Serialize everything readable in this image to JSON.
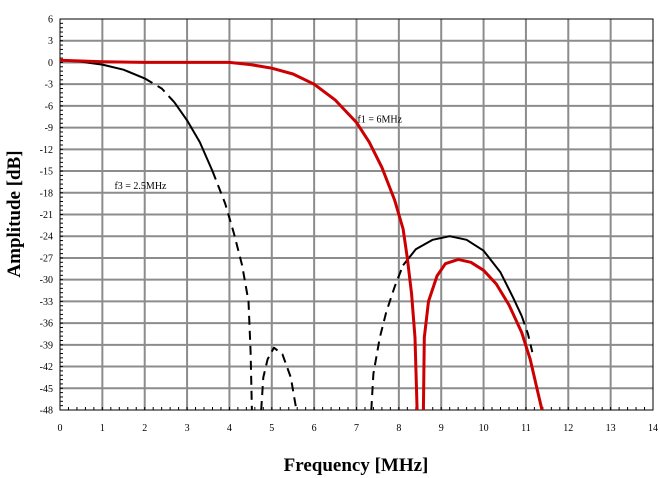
{
  "chart_data": {
    "type": "line",
    "xlabel": "Frequency [MHz]",
    "ylabel": "Amplitude [dB]",
    "xlim": [
      0,
      14
    ],
    "ylim": [
      -48,
      6
    ],
    "x_ticks": [
      0,
      1,
      2,
      3,
      4,
      5,
      6,
      7,
      8,
      9,
      10,
      11,
      12,
      13,
      14
    ],
    "y_ticks": [
      6,
      3,
      0,
      -3,
      -6,
      -9,
      -12,
      -15,
      -18,
      -21,
      -24,
      -27,
      -30,
      -33,
      -36,
      -39,
      -42,
      -45,
      -48
    ],
    "grid": true,
    "annotations": [
      {
        "text": "f1 = 6MHz",
        "x": 7.55,
        "y": -8.3
      },
      {
        "text": "f3 = 2.5MHz",
        "x": 1.9,
        "y": -17.5
      }
    ],
    "series": [
      {
        "color": "#cc0000",
        "style": "solid",
        "segments": [
          [
            [
              0,
              0.3
            ],
            [
              0.5,
              0.2
            ],
            [
              1,
              0.1
            ],
            [
              2,
              0
            ],
            [
              3,
              0
            ],
            [
              4,
              0
            ],
            [
              4.5,
              -0.3
            ],
            [
              5,
              -0.8
            ],
            [
              5.5,
              -1.6
            ],
            [
              6,
              -3
            ],
            [
              6.5,
              -5.2
            ],
            [
              7,
              -8.3
            ],
            [
              7.3,
              -11
            ],
            [
              7.6,
              -14.5
            ],
            [
              7.9,
              -19
            ],
            [
              8.1,
              -23
            ],
            [
              8.2,
              -27
            ],
            [
              8.3,
              -32
            ],
            [
              8.38,
              -38
            ],
            [
              8.43,
              -48
            ]
          ],
          [
            [
              8.58,
              -48
            ],
            [
              8.6,
              -38
            ],
            [
              8.7,
              -33
            ],
            [
              8.9,
              -29.5
            ],
            [
              9.1,
              -27.8
            ],
            [
              9.4,
              -27.2
            ],
            [
              9.7,
              -27.6
            ],
            [
              10,
              -28.7
            ],
            [
              10.3,
              -30.6
            ],
            [
              10.6,
              -33.5
            ],
            [
              10.9,
              -37.3
            ],
            [
              11.1,
              -41
            ],
            [
              11.2,
              -43.5
            ],
            [
              11.3,
              -46
            ],
            [
              11.38,
              -48
            ]
          ]
        ]
      },
      {
        "color": "#000000",
        "style": "mixed",
        "segments": [
          {
            "dash": false,
            "points": [
              [
                0,
                0.3
              ],
              [
                0.5,
                0.1
              ],
              [
                1,
                -0.3
              ],
              [
                1.5,
                -1
              ],
              [
                2,
                -2.2
              ]
            ]
          },
          {
            "dash": true,
            "points": [
              [
                2,
                -2.2
              ],
              [
                2.4,
                -3.6
              ],
              [
                2.7,
                -5.5
              ]
            ]
          },
          {
            "dash": false,
            "points": [
              [
                2.7,
                -5.5
              ],
              [
                3,
                -8
              ],
              [
                3.3,
                -11
              ],
              [
                3.6,
                -15
              ]
            ]
          },
          {
            "dash": true,
            "points": [
              [
                3.6,
                -15
              ],
              [
                3.9,
                -19.5
              ],
              [
                4.1,
                -23.5
              ],
              [
                4.3,
                -28
              ],
              [
                4.45,
                -33
              ],
              [
                4.5,
                -40
              ],
              [
                4.53,
                -48
              ]
            ]
          },
          {
            "dash": true,
            "points": [
              [
                4.75,
                -48
              ],
              [
                4.8,
                -43.5
              ],
              [
                4.9,
                -41
              ],
              [
                5.05,
                -39.4
              ],
              [
                5.25,
                -40.3
              ],
              [
                5.45,
                -43.5
              ],
              [
                5.58,
                -48
              ]
            ]
          },
          {
            "dash": true,
            "points": [
              [
                7.35,
                -48
              ],
              [
                7.4,
                -43
              ],
              [
                7.55,
                -38
              ],
              [
                7.7,
                -34.5
              ],
              [
                7.9,
                -31
              ],
              [
                8.1,
                -28
              ]
            ]
          },
          {
            "dash": false,
            "points": [
              [
                8.1,
                -28
              ],
              [
                8.4,
                -25.8
              ],
              [
                8.8,
                -24.5
              ],
              [
                9.2,
                -24
              ],
              [
                9.6,
                -24.5
              ],
              [
                10,
                -26
              ],
              [
                10.4,
                -29
              ],
              [
                10.7,
                -32.5
              ],
              [
                10.9,
                -35
              ]
            ]
          },
          {
            "dash": true,
            "points": [
              [
                10.9,
                -35
              ],
              [
                11.05,
                -37.5
              ],
              [
                11.15,
                -40
              ]
            ]
          }
        ]
      }
    ]
  }
}
